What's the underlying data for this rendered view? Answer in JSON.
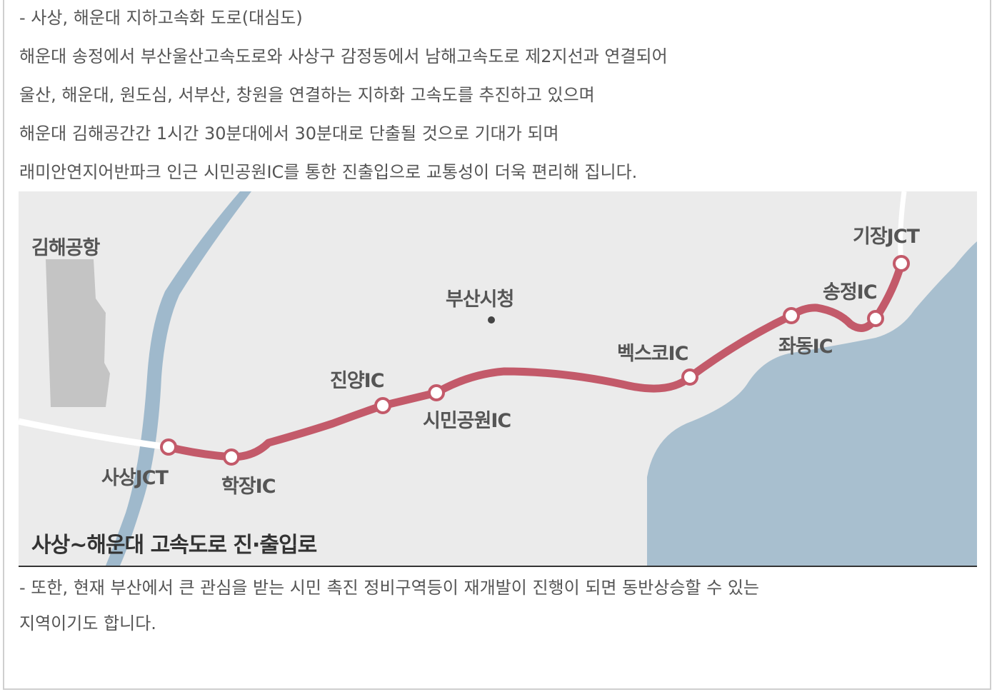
{
  "article": {
    "heading": "- 사상, 해운대 지하고속화 도로(대심도)",
    "para_1": "해운대 송정에서 부산울산고속도로와 사상구 감정동에서 남해고속도로 제2지선과 연결되어",
    "para_2": "울산, 해운대, 원도심, 서부산, 창원을 연결하는 지하화 고속도를 추진하고 있으며",
    "para_3": "해운대 김해공간간 1시간 30분대에서 30분대로 단출될 것으로 기대가 되며",
    "para_4": "래미안연지어반파크 인근 시민공원IC를 통한 진출입으로 교통성이 더욱 편리해 집니다.",
    "footer_1": "- 또한, 현재 부산에서 큰 관심을 받는 시민 촉진 정비구역등이 재개발이 진행이 되면 동반상승할 수 있는",
    "footer_2": "지역이기도 합니다."
  },
  "map": {
    "caption": "사상~해운대 고속도로 진·출입로",
    "airport": "김해공항",
    "city_hall": "부산시청",
    "route_color": "#c35a6a",
    "river_color": "#9fb9cc",
    "sea_color": "#a8bfcf",
    "stations": {
      "sasang_jct": "사상JCT",
      "hakjang_ic": "학장IC",
      "jinyang_ic": "진양IC",
      "simin_park_ic": "시민공원IC",
      "bexco_ic": "벡스코IC",
      "jwadong_ic": "좌동IC",
      "songjeong_ic": "송정IC",
      "gijang_jct": "기장JCT"
    }
  }
}
